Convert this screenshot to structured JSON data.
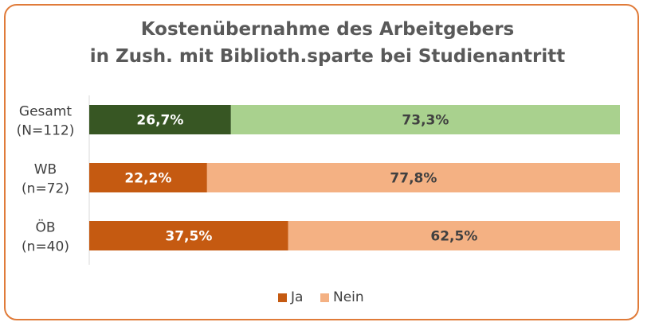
{
  "chart_data": {
    "type": "bar",
    "orientation": "horizontal",
    "stacked": "100%",
    "title": "Kostenübernahme des Arbeitgebers",
    "subtitle": "in Zush. mit Biblioth.sparte bei Studienantritt",
    "categories": [
      {
        "line1": "Gesamt",
        "line2": "(N=112)"
      },
      {
        "line1": "WB",
        "line2": "(n=72)"
      },
      {
        "line1": "ÖB",
        "line2": "(n=40)"
      }
    ],
    "series": [
      {
        "name": "Ja",
        "values": [
          26.7,
          22.2,
          37.5
        ],
        "labels": [
          "26,7%",
          "22,2%",
          "37,5%"
        ]
      },
      {
        "name": "Nein",
        "values": [
          73.3,
          77.8,
          62.5
        ],
        "labels": [
          "73,3%",
          "77,8%",
          "62,5%"
        ]
      }
    ],
    "colors": {
      "ja": [
        "#375623",
        "#c55a11",
        "#c55a11"
      ],
      "nein": [
        "#a9d18e",
        "#f4b183",
        "#f4b183"
      ],
      "legend_ja": "#c55a11",
      "legend_nein": "#f4b183",
      "label_ja_text": "#ffffff",
      "label_nein_text": "#404040",
      "border": "#e07b39"
    },
    "legend_position": "bottom",
    "grid": false
  }
}
